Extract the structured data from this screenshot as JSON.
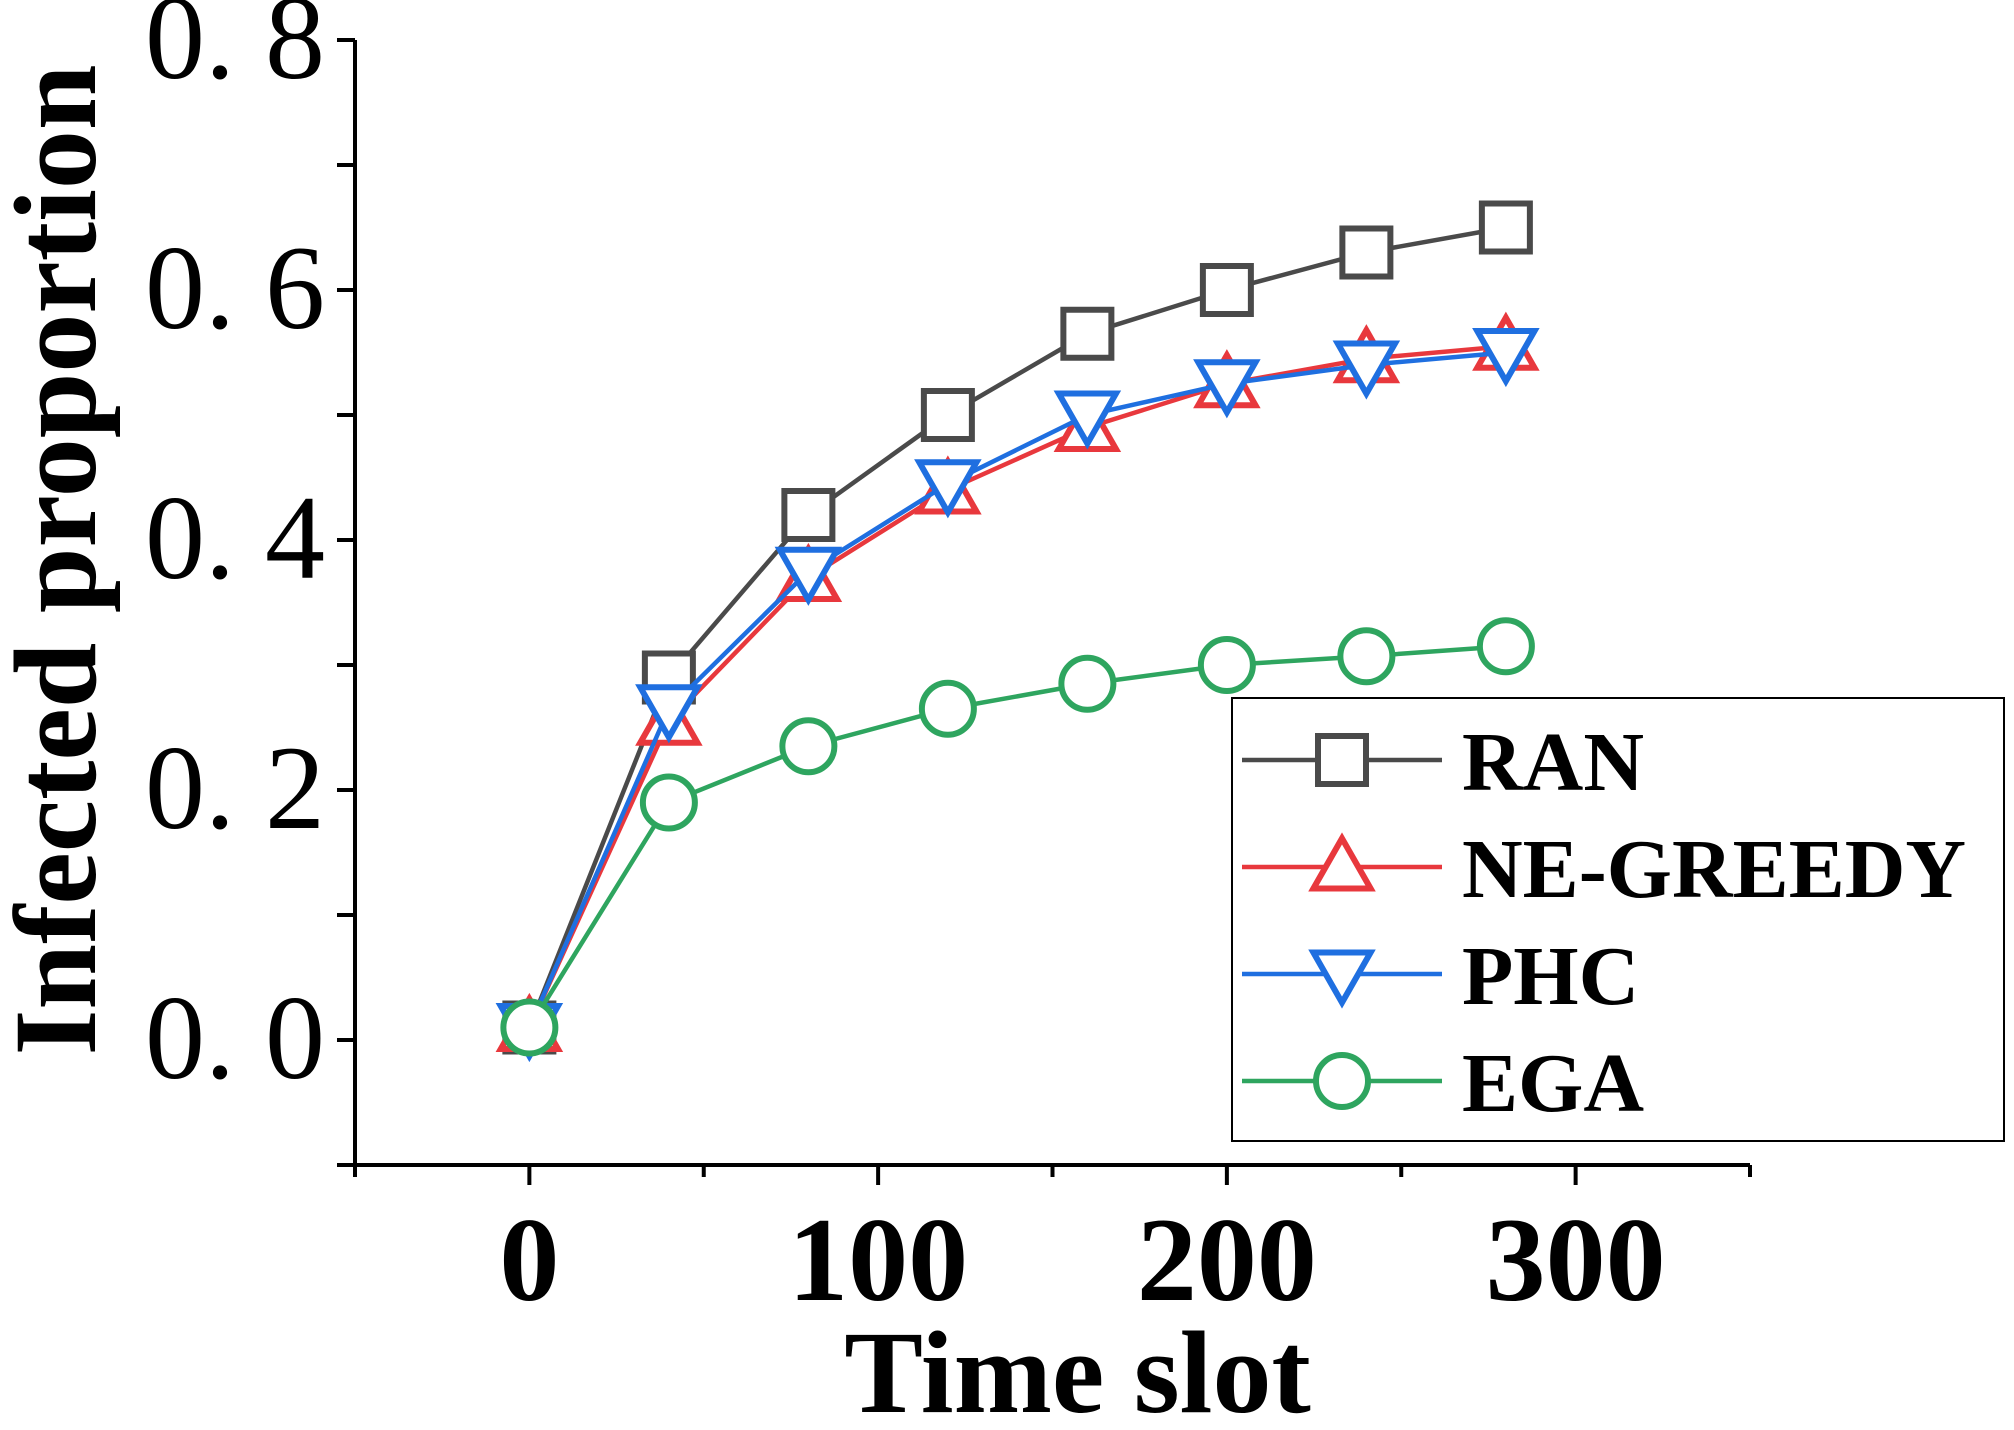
{
  "chart_data": {
    "type": "line",
    "title": "",
    "xlabel": "Time slot",
    "ylabel": "Infected proportion",
    "xlim": [
      -50,
      350
    ],
    "ylim": [
      -0.1,
      0.8
    ],
    "xticks": [
      0,
      100,
      200,
      300
    ],
    "xtick_labels": [
      "0",
      "100",
      "200",
      "300"
    ],
    "yticks": [
      0.0,
      0.2,
      0.4,
      0.6,
      0.8
    ],
    "ytick_labels": [
      "0. 0",
      "0. 2",
      "0. 4",
      "0. 6",
      "0. 8"
    ],
    "grid": false,
    "legend_position": "bottom-right",
    "x": [
      0,
      40,
      80,
      120,
      160,
      200,
      240,
      280
    ],
    "series": [
      {
        "name": "RAN",
        "color": "#4a4a4a",
        "marker": "square",
        "values": [
          0.01,
          0.29,
          0.42,
          0.5,
          0.565,
          0.6,
          0.63,
          0.65
        ]
      },
      {
        "name": "NE-GREEDY",
        "color": "#e8383d",
        "marker": "triangle-up",
        "values": [
          0.01,
          0.255,
          0.37,
          0.44,
          0.49,
          0.525,
          0.545,
          0.555
        ]
      },
      {
        "name": "PHC",
        "color": "#1f6fe0",
        "marker": "triangle-down",
        "values": [
          0.01,
          0.265,
          0.375,
          0.445,
          0.5,
          0.525,
          0.54,
          0.55
        ]
      },
      {
        "name": "EGA",
        "color": "#2ea55f",
        "marker": "circle",
        "values": [
          0.01,
          0.19,
          0.235,
          0.265,
          0.285,
          0.3,
          0.307,
          0.315
        ]
      }
    ]
  }
}
